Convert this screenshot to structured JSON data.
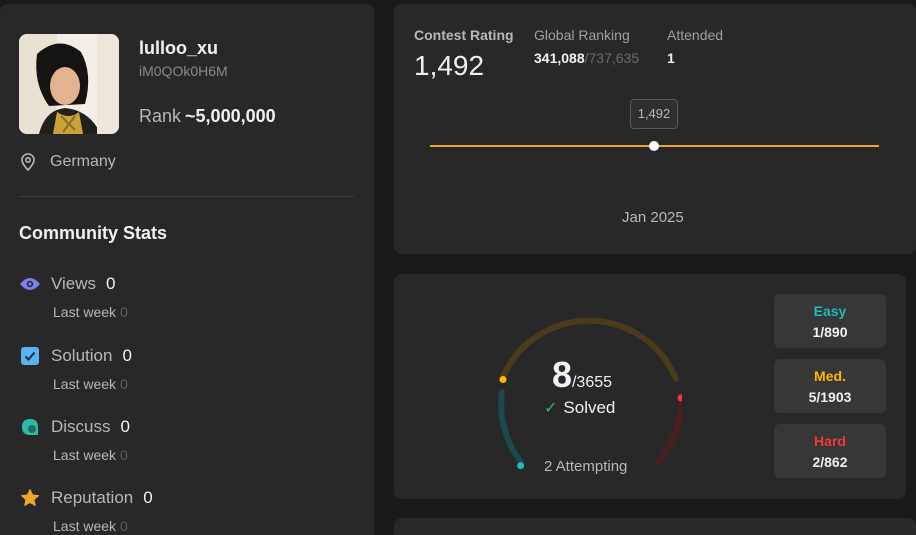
{
  "profile": {
    "username": "lulloo_xu",
    "user_id": "iM0QOk0H6M",
    "rank_label": "Rank",
    "rank_value": "~5,000,000",
    "location": "Germany"
  },
  "community": {
    "title": "Community Stats",
    "stats": [
      {
        "label": "Views",
        "value": "0",
        "sub_label": "Last week",
        "sub_value": "0",
        "icon": "eye-icon",
        "color": "#7b7ff0"
      },
      {
        "label": "Solution",
        "value": "0",
        "sub_label": "Last week",
        "sub_value": "0",
        "icon": "solution-check-icon",
        "color": "#5ab3f0"
      },
      {
        "label": "Discuss",
        "value": "0",
        "sub_label": "Last week",
        "sub_value": "0",
        "icon": "discuss-bubble-icon",
        "color": "#2cbba6"
      },
      {
        "label": "Reputation",
        "value": "0",
        "sub_label": "Last week",
        "sub_value": "0",
        "icon": "star-icon",
        "color": "#f0a52a"
      }
    ]
  },
  "contest": {
    "rating_label": "Contest Rating",
    "rating": "1,492",
    "global_ranking_label": "Global Ranking",
    "global_rank": "341,088",
    "global_total": "/737,635",
    "attended_label": "Attended",
    "attended": "1",
    "tooltip_value": "1,492",
    "date_label": "Jan 2025",
    "line_color": "#f0a52a"
  },
  "solved": {
    "solved_count": "8",
    "total": "/3655",
    "check": "✓",
    "label": "Solved",
    "attempting": "2 Attempting",
    "progress_fraction": 0.0022,
    "difficulties": [
      {
        "label": "Easy",
        "value": "1/890",
        "color": "#1cbaba"
      },
      {
        "label": "Med.",
        "value": "5/1903",
        "color": "#ffb700"
      },
      {
        "label": "Hard",
        "value": "2/862",
        "color": "#f63737"
      }
    ]
  }
}
